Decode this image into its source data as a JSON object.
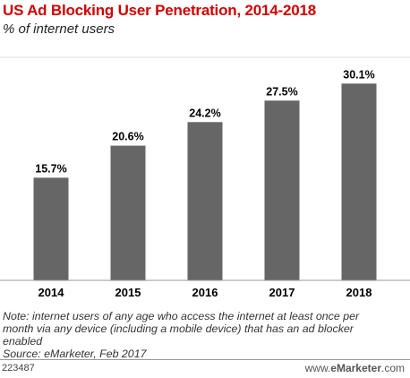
{
  "header": {
    "title": "US Ad Blocking User Penetration, 2014-2018",
    "subtitle": "% of internet users"
  },
  "colors": {
    "title": "#d10000",
    "bar": "#666666",
    "axis": "#999999",
    "gridline": "#dddddd"
  },
  "chart_data": {
    "type": "bar",
    "categories": [
      "2014",
      "2015",
      "2016",
      "2017",
      "2018"
    ],
    "values": [
      15.7,
      20.6,
      24.2,
      27.5,
      30.1
    ],
    "value_labels": [
      "15.7%",
      "20.6%",
      "24.2%",
      "27.5%",
      "30.1%"
    ],
    "title": "US Ad Blocking User Penetration, 2014-2018",
    "subtitle": "% of internet users",
    "xlabel": "",
    "ylabel": "",
    "ylim": [
      0,
      35
    ],
    "grid": false,
    "legend": "none"
  },
  "notes": {
    "note_lines": [
      "Note: internet users of any age who access the internet at least once per",
      "month via any device (including a mobile device) that has an ad blocker",
      "enabled"
    ],
    "source": "Source: eMarketer, Feb 2017"
  },
  "footer": {
    "chart_id": "223487",
    "brand_prefix": "www.",
    "brand_name": "eMarketer",
    "brand_suffix": ".com"
  }
}
